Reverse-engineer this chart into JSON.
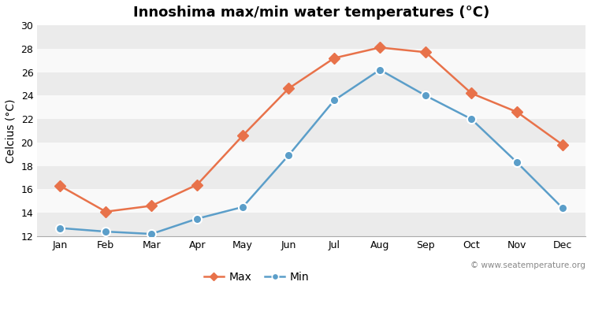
{
  "title": "Innoshima max/min water temperatures (°C)",
  "ylabel": "Celcius (°C)",
  "months": [
    "Jan",
    "Feb",
    "Mar",
    "Apr",
    "May",
    "Jun",
    "Jul",
    "Aug",
    "Sep",
    "Oct",
    "Nov",
    "Dec"
  ],
  "max_values": [
    16.3,
    14.1,
    14.6,
    16.4,
    20.6,
    24.6,
    27.2,
    28.1,
    27.7,
    24.2,
    22.6,
    19.8
  ],
  "min_values": [
    12.7,
    12.4,
    12.2,
    13.5,
    14.5,
    18.9,
    23.6,
    26.2,
    24.0,
    22.0,
    18.3,
    14.4
  ],
  "max_color": "#e8724a",
  "min_color": "#5b9ec9",
  "background_color": "#ffffff",
  "plot_bg_color": "#f2f2f2",
  "band_color_light": "#ebebeb",
  "band_color_white": "#f9f9f9",
  "ylim": [
    12,
    30
  ],
  "yticks": [
    12,
    14,
    16,
    18,
    20,
    22,
    24,
    26,
    28,
    30
  ],
  "watermark": "© www.seatemperature.org",
  "legend_max": "Max",
  "legend_min": "Min",
  "title_fontsize": 13,
  "label_fontsize": 10,
  "tick_fontsize": 9,
  "marker_size": 7,
  "line_width": 1.8
}
